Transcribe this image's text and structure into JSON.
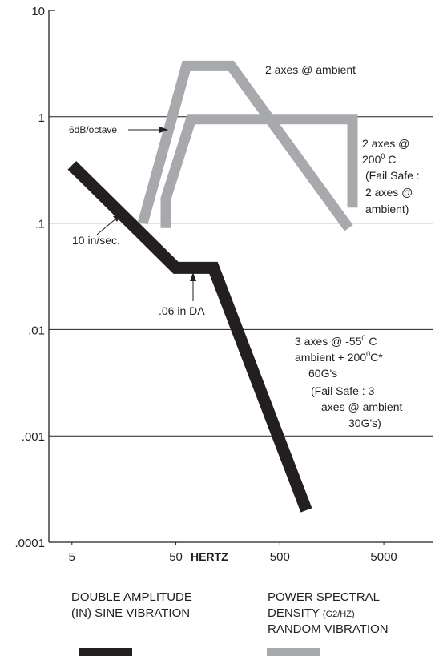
{
  "chart_data": {
    "type": "line",
    "title": "",
    "xlabel": "HERTZ",
    "ylabel": "",
    "x_scale": "log",
    "y_scale": "log",
    "xlim": [
      3,
      15000
    ],
    "ylim": [
      0.0001,
      10
    ],
    "grid": "horizontal",
    "x_tick_labels": [
      "5",
      "50",
      "500",
      "5000"
    ],
    "y_tick_labels": [
      "10",
      "1",
      ".1",
      ".01",
      ".001",
      ".0001"
    ],
    "series": [
      {
        "name": "DOUBLE AMPLITUDE (IN) SINE VIBRATION",
        "color": "#231f20",
        "points": [
          [
            5,
            0.35
          ],
          [
            50,
            0.038
          ],
          [
            115,
            0.038
          ],
          [
            900,
            0.0002
          ]
        ]
      },
      {
        "name": "2 axes @ ambient",
        "color": "#a7a9ac",
        "points": [
          [
            24,
            0.1
          ],
          [
            63,
            3.0
          ],
          [
            170,
            3.0
          ],
          [
            2300,
            0.09
          ]
        ]
      },
      {
        "name": "2 axes @ 200° C (Fail Safe : 2 axes @ ambient)",
        "color": "#a7a9ac",
        "points": [
          [
            40,
            0.09
          ],
          [
            40,
            0.17
          ],
          [
            70,
            0.95
          ],
          [
            2500,
            0.95
          ],
          [
            2500,
            0.14
          ]
        ]
      }
    ],
    "annotations": [
      {
        "text": "2 axes @ ambient"
      },
      {
        "text": "6dB/octave"
      },
      {
        "lines": [
          "2 axes @",
          "200",
          "0",
          " C",
          "(Fail Safe :",
          "2 axes @",
          "ambient)"
        ]
      },
      {
        "text": "10 in/sec."
      },
      {
        "text": ".06 in DA"
      },
      {
        "lines": [
          "3 axes @ -55",
          "0",
          " C",
          "ambient + 200",
          "0",
          "C*",
          "60G's",
          "(Fail Safe : 3",
          "axes @ ambient",
          "30G's)"
        ]
      }
    ],
    "legend": [
      {
        "lines": [
          "DOUBLE AMPLITUDE",
          "(IN) SINE VIBRATION"
        ],
        "color": "#231f20"
      },
      {
        "lines": [
          "POWER SPECTRAL",
          "DENSITY ",
          "(G2/HZ)",
          "RANDOM VIBRATION"
        ],
        "color": "#a7a9ac"
      }
    ],
    "legend_position": "bottom"
  }
}
